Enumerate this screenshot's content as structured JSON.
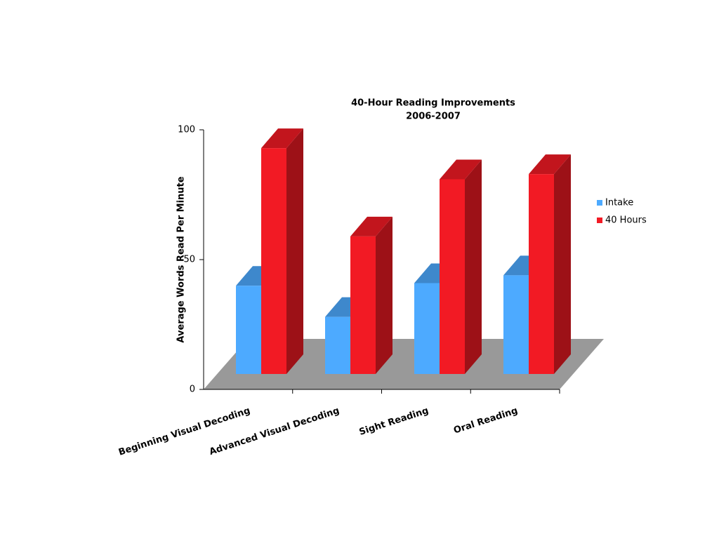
{
  "chart_data": {
    "type": "bar3d",
    "title": "40-Hour Reading Improvements",
    "subtitle": "2006-2007",
    "y_label": "Average Words Read Per Minute",
    "categories": [
      "Beginning Visual Decoding",
      "Advanced Visual Decoding",
      "Sight Reading",
      "Oral Reading"
    ],
    "series": [
      {
        "name": "Intake",
        "color": "#4daaff",
        "values": [
          34,
          22,
          35,
          38
        ]
      },
      {
        "name": "40 Hours",
        "color": "#f21a24",
        "values": [
          87,
          53,
          75,
          77
        ]
      }
    ],
    "ylim": [
      0,
      100
    ],
    "yticks": [
      0,
      50,
      100
    ],
    "legend": "right"
  }
}
